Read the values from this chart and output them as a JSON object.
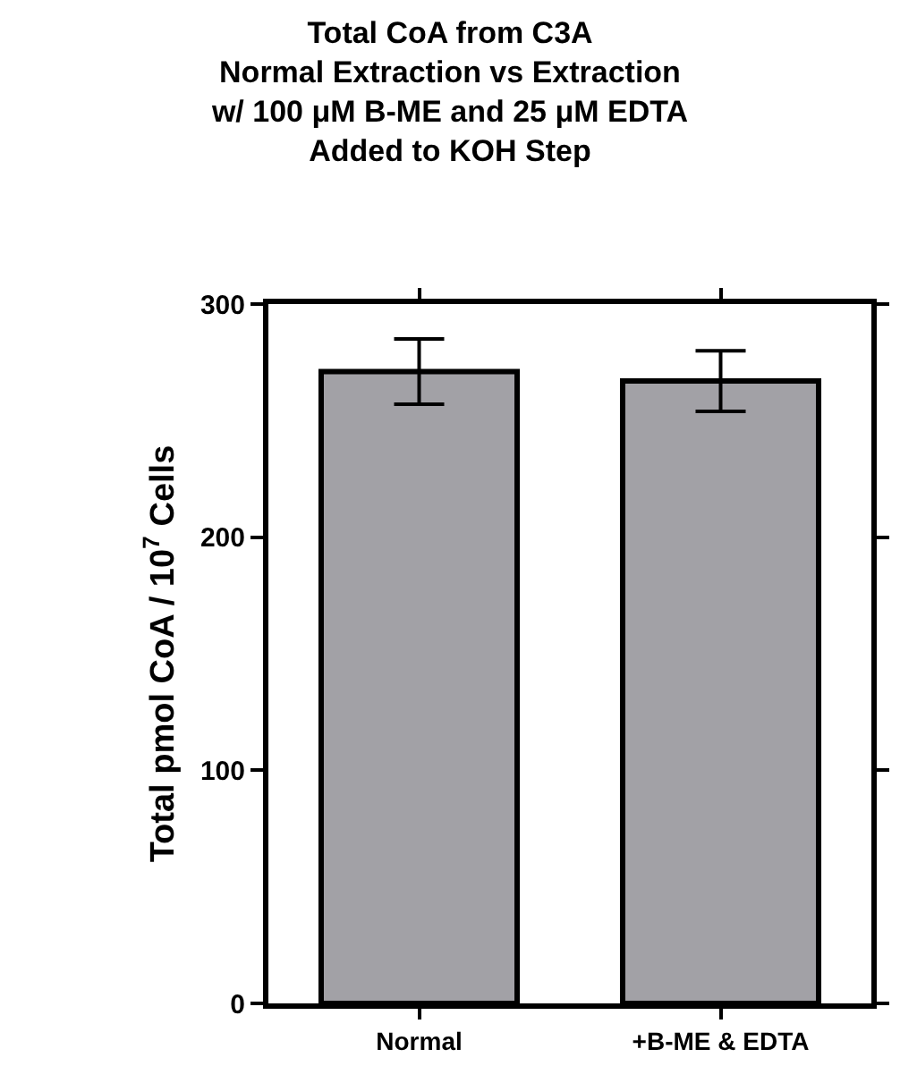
{
  "chart_data": {
    "type": "bar",
    "title": "Total CoA from C3A\nNormal Extraction vs Extraction\nw/ 100 μM B-ME and 25 μM EDTA\nAdded to KOH Step",
    "ylabel": "Total pmol CoA / 10$^{7}$ Cells",
    "categories": [
      "Normal",
      "+B-ME & EDTA"
    ],
    "values": [
      271,
      267
    ],
    "errors": [
      14,
      13
    ],
    "color": "#a2a1a6",
    "ylim": [
      0,
      300
    ],
    "yticks": [
      0,
      100,
      200,
      300
    ]
  }
}
